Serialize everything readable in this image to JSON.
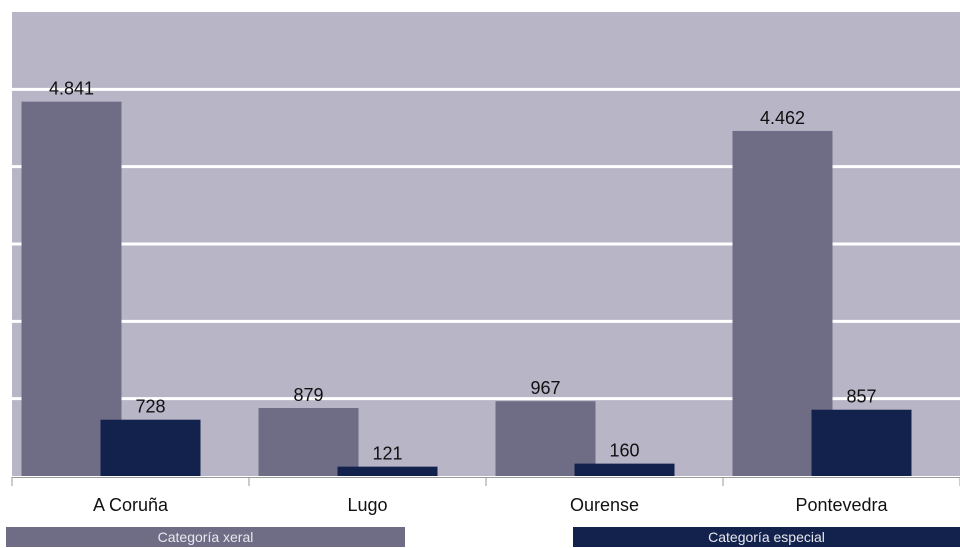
{
  "chart_data": {
    "type": "bar",
    "categories": [
      "A Coruña",
      "Lugo",
      "Ourense",
      "Pontevedra"
    ],
    "series": [
      {
        "name": "Categoría xeral",
        "values": [
          4841,
          879,
          967,
          4462
        ],
        "labels": [
          "4.841",
          "879",
          "967",
          "4.462"
        ]
      },
      {
        "name": "Categoría especial",
        "values": [
          728,
          121,
          160,
          857
        ],
        "labels": [
          "728",
          "121",
          "160",
          "857"
        ]
      }
    ],
    "ylim": [
      0,
      6000
    ],
    "grid": true,
    "legend_position": "bottom",
    "title": "",
    "xlabel": "",
    "ylabel": ""
  },
  "colors": {
    "plot_background": "#b7b5c6",
    "gridline": "#ffffff",
    "series_xeral": "#6f6d85",
    "series_especial": "#13224d",
    "legend_text": "#e8e8ee"
  }
}
